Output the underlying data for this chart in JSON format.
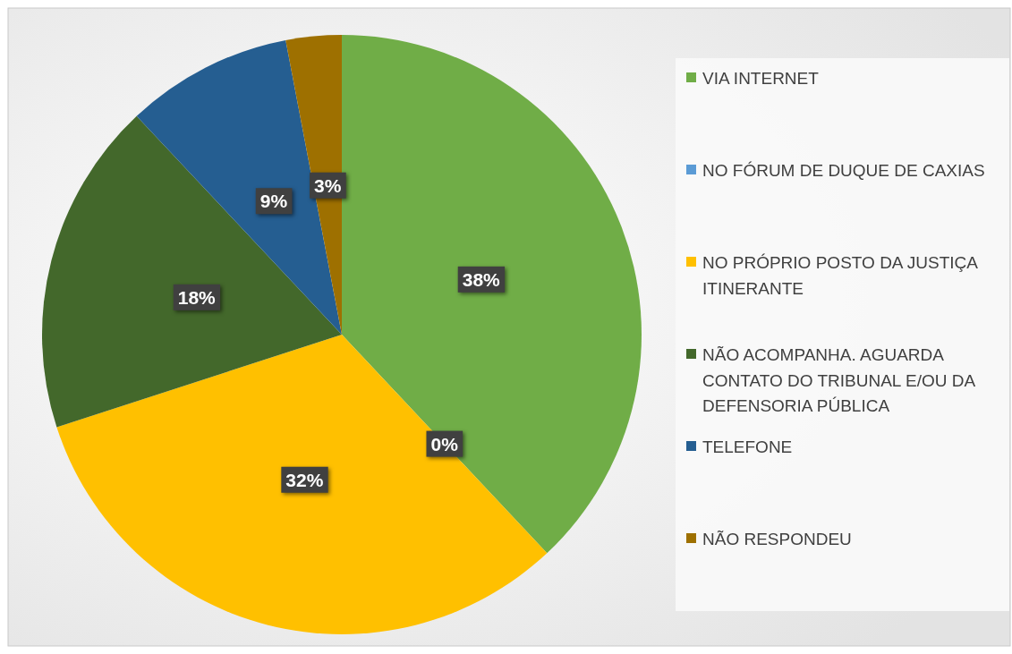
{
  "chart_data": {
    "type": "pie",
    "categories": [
      "VIA INTERNET",
      "NO FÓRUM DE DUQUE DE CAXIAS",
      "NO PRÓPRIO POSTO DA JUSTIÇA ITINERANTE",
      "NÃO ACOMPANHA. AGUARDA CONTATO DO TRIBUNAL E/OU DA DEFENSORIA PÚBLICA",
      "TELEFONE",
      "NÃO RESPONDEU"
    ],
    "values": [
      38,
      0,
      32,
      18,
      9,
      3
    ],
    "colors": [
      "#70ad47",
      "#5b9bd5",
      "#ffc000",
      "#43682b",
      "#255e91",
      "#9e7000"
    ],
    "value_labels": [
      "38%",
      "0%",
      "32%",
      "18%",
      "9%",
      "3%"
    ],
    "legend": "right"
  }
}
